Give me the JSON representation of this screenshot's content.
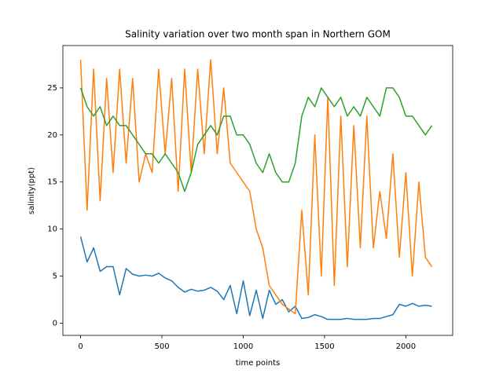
{
  "chart_data": {
    "type": "line",
    "title": "Salinity variation over two month span in Northern GOM",
    "xlabel": "time points",
    "ylabel": "salinity(ppt)",
    "x": [
      0,
      40,
      80,
      120,
      160,
      200,
      240,
      280,
      320,
      360,
      400,
      440,
      480,
      520,
      560,
      600,
      640,
      680,
      720,
      760,
      800,
      840,
      880,
      920,
      960,
      1000,
      1040,
      1080,
      1120,
      1160,
      1200,
      1240,
      1280,
      1320,
      1360,
      1400,
      1440,
      1480,
      1520,
      1560,
      1600,
      1640,
      1680,
      1720,
      1760,
      1800,
      1840,
      1880,
      1920,
      1960,
      2000,
      2040,
      2080,
      2120,
      2160
    ],
    "series": [
      {
        "color": "#1f77b4",
        "values": [
          9.2,
          6.5,
          8.0,
          5.5,
          6.0,
          6.0,
          3.0,
          5.8,
          5.2,
          5.0,
          5.1,
          5.0,
          5.3,
          4.8,
          4.5,
          3.8,
          3.3,
          3.6,
          3.4,
          3.5,
          3.8,
          3.4,
          2.5,
          4.0,
          1.0,
          4.5,
          0.8,
          3.5,
          0.5,
          3.5,
          2.0,
          2.5,
          1.2,
          1.8,
          0.5,
          0.6,
          0.9,
          0.7,
          0.4,
          0.4,
          0.4,
          0.5,
          0.4,
          0.4,
          0.4,
          0.5,
          0.5,
          0.7,
          0.9,
          2.0,
          1.8,
          2.1,
          1.8,
          1.9,
          1.8
        ]
      },
      {
        "color": "#ff7f0e",
        "values": [
          28,
          12,
          27,
          13,
          26,
          16,
          27,
          17,
          26,
          15,
          18,
          16,
          27,
          18,
          26,
          14,
          27,
          16,
          27,
          18,
          28,
          18,
          25,
          17,
          16,
          15,
          14,
          10,
          8,
          4,
          3,
          2,
          1.5,
          1,
          12,
          3,
          20,
          5,
          24,
          4,
          22,
          6,
          21,
          8,
          22,
          8,
          14,
          9,
          18,
          7,
          16,
          5,
          15,
          7,
          6
        ]
      },
      {
        "color": "#2ca02c",
        "values": [
          25,
          23,
          22,
          23,
          21,
          22,
          21,
          21,
          20,
          19,
          18,
          18,
          17,
          18,
          17,
          16,
          14,
          16,
          19,
          20,
          21,
          20,
          22,
          22,
          20,
          20,
          19,
          17,
          16,
          18,
          16,
          15,
          15,
          17,
          22,
          24,
          23,
          25,
          24,
          23,
          24,
          22,
          23,
          22,
          24,
          23,
          22,
          25,
          25,
          24,
          22,
          22,
          21,
          20,
          21
        ]
      }
    ],
    "xlim": [
      -109,
      2288
    ],
    "ylim": [
      -1.3,
      29.5
    ],
    "xticks": [
      0,
      500,
      1000,
      1500,
      2000
    ],
    "yticks": [
      0,
      5,
      10,
      15,
      20,
      25
    ]
  }
}
